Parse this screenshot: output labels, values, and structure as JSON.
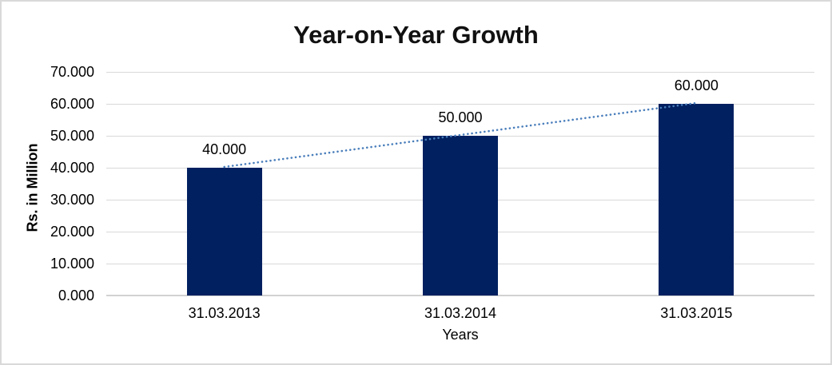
{
  "frame": {
    "background": "#ffffff",
    "border_color": "#d9d9d9"
  },
  "chart_data": {
    "type": "bar",
    "title": "Year-on-Year Growth",
    "categories": [
      "31.03.2013",
      "31.03.2014",
      "31.03.2015"
    ],
    "values": [
      40.0,
      50.0,
      60.0
    ],
    "data_labels": [
      "40.000",
      "50.000",
      "60.000"
    ],
    "xlabel": "Years",
    "ylabel": "Rs. in Million",
    "ylim": [
      0,
      70
    ],
    "ytick_step": 10,
    "ytick_labels": [
      "0.000",
      "10.000",
      "20.000",
      "30.000",
      "40.000",
      "50.000",
      "60.000",
      "70.000"
    ],
    "grid": true,
    "legend": "none",
    "bar_color": "#002060",
    "gridline_color": "#d9d9d9",
    "axis_line_color": "#d2d2d2",
    "text_color": "#000000",
    "trendline": {
      "type": "linear",
      "style": "dotted",
      "color": "#4a7ebb"
    }
  }
}
